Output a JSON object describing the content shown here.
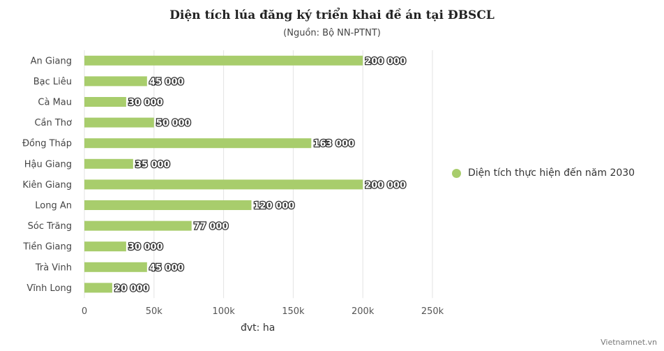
{
  "chart_data": {
    "type": "bar",
    "orientation": "horizontal",
    "title": "Diện tích lúa đăng ký triển khai đề án tại ĐBSCL",
    "subtitle": "(Nguồn: Bộ NN-PTNT)",
    "categories": [
      "An Giang",
      "Bạc Liêu",
      "Cà Mau",
      "Cần Thơ",
      "Đồng Tháp",
      "Hậu Giang",
      "Kiên Giang",
      "Long An",
      "Sóc Trăng",
      "Tiền Giang",
      "Trà Vinh",
      "Vĩnh Long"
    ],
    "series": [
      {
        "name": "Diện tích thực hiện đến năm 2030",
        "color": "#a8cd6c",
        "values": [
          200000,
          45000,
          30000,
          50000,
          163000,
          35000,
          200000,
          120000,
          77000,
          30000,
          45000,
          20000
        ],
        "value_labels": [
          "200 000",
          "45 000",
          "30 000",
          "50 000",
          "163 000",
          "35 000",
          "200 000",
          "120 000",
          "77 000",
          "30 000",
          "45 000",
          "20 000"
        ]
      }
    ],
    "xlim": [
      0,
      250000
    ],
    "x_ticks": [
      0,
      50000,
      100000,
      150000,
      200000,
      250000
    ],
    "x_tick_labels": [
      "0",
      "50k",
      "100k",
      "150k",
      "200k",
      "250k"
    ],
    "grid": true,
    "legend_position": "right",
    "unit_note": "đvt: ha"
  },
  "credit": "Vietnamnet.vn"
}
